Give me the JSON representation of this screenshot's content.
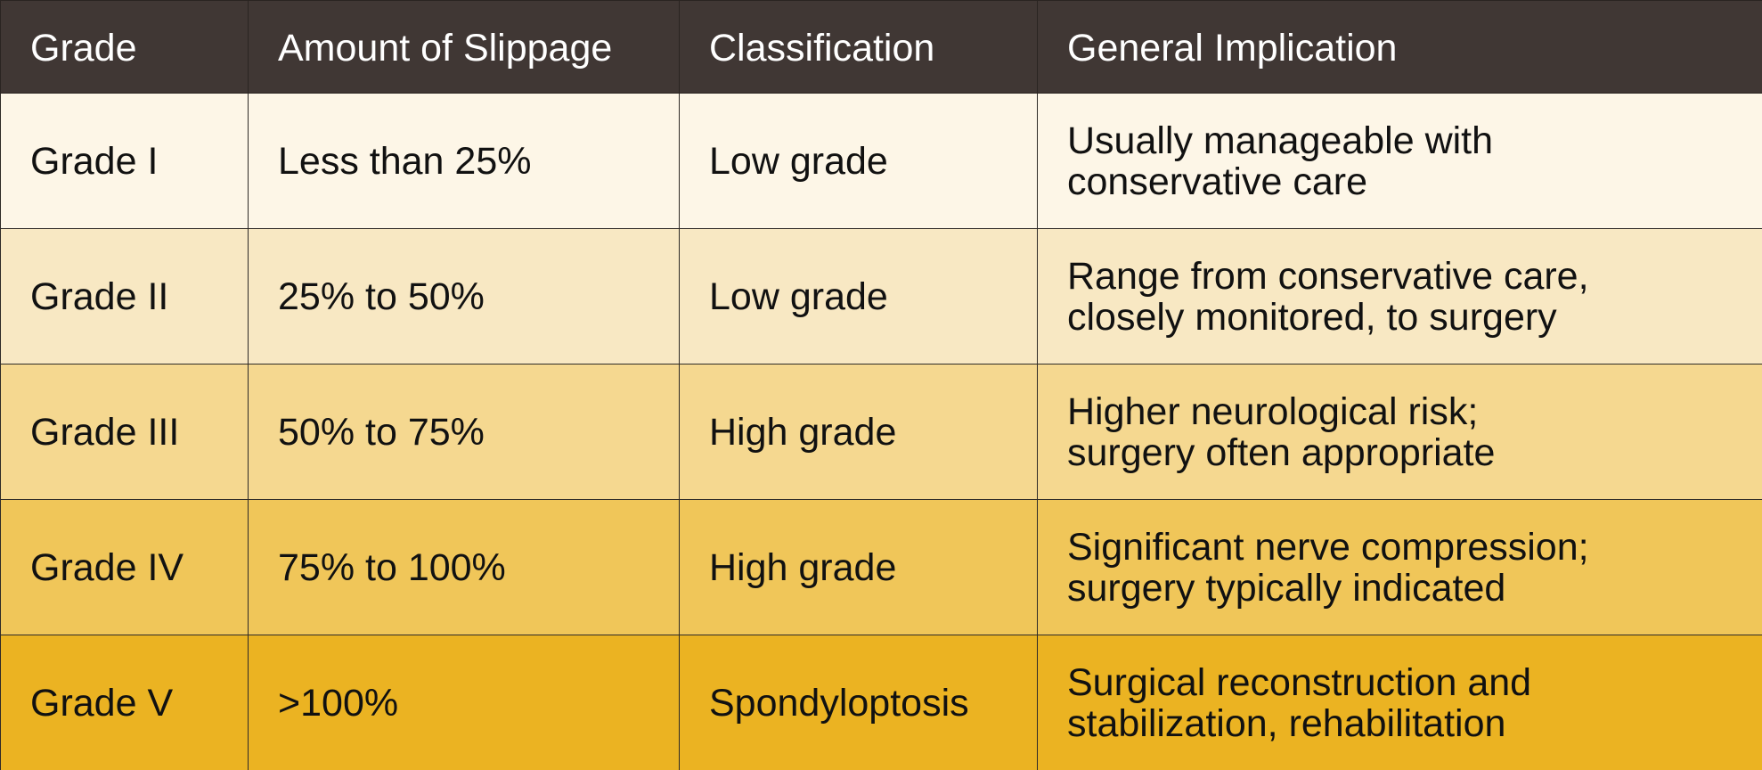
{
  "table": {
    "headers": [
      "Grade",
      "Amount of Slippage",
      "Classification",
      "General Implication"
    ],
    "rows": [
      {
        "grade": "Grade I",
        "slippage": "Less than 25%",
        "classification": "Low grade",
        "implication_line1": "Usually manageable with",
        "implication_line2": "conservative care",
        "bg": "#fdf6e7"
      },
      {
        "grade": "Grade II",
        "slippage": "25% to 50%",
        "classification": "Low grade",
        "implication_line1": "Range from conservative care,",
        "implication_line2": "closely monitored, to surgery",
        "bg": "#f8e8c3"
      },
      {
        "grade": "Grade III",
        "slippage": "50% to 75%",
        "classification": "High grade",
        "implication_line1": "Higher neurological risk;",
        "implication_line2": "surgery often appropriate",
        "bg": "#f5d890"
      },
      {
        "grade": "Grade IV",
        "slippage": "75% to 100%",
        "classification": "High grade",
        "implication_line1": "Significant nerve compression;",
        "implication_line2": "surgery typically indicated",
        "bg": "#f0c659"
      },
      {
        "grade": "Grade V",
        "slippage": ">100%",
        "classification": "Spondyloptosis",
        "implication_line1": "Surgical reconstruction and",
        "implication_line2": "stabilization, rehabilitation",
        "bg": "#ebb322"
      }
    ]
  },
  "colors": {
    "header_bg": "#403734",
    "header_text": "#ffffff",
    "border": "#2e2a27"
  }
}
